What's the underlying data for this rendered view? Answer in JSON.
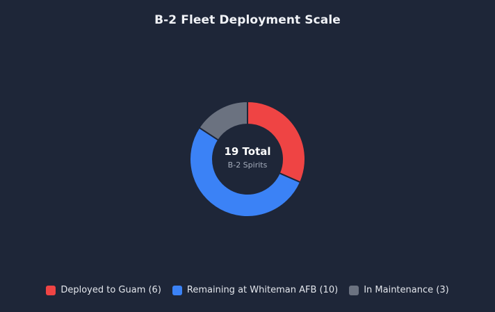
{
  "chart_data": {
    "type": "pie",
    "title": "B-2 Fleet Deployment Scale",
    "center": {
      "main": "19 Total",
      "sub": "B-2 Spirits"
    },
    "categories": [
      "Deployed to Guam (6)",
      "Remaining at Whiteman AFB (10)",
      "In Maintenance (3)"
    ],
    "values": [
      6,
      10,
      3
    ],
    "colors": [
      "#ef4444",
      "#3b82f6",
      "#6b7280"
    ],
    "legend_position": "bottom"
  }
}
